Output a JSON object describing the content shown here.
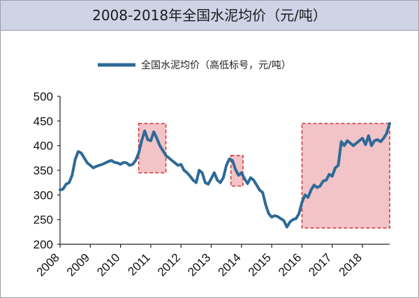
{
  "title": "2008-2018年全国水泥均价（元/吨）",
  "colors": {
    "line": "#2e6a97",
    "highlight_fill": "#f2c4c8",
    "highlight_border": "#d33a3a",
    "title_bar": "#cfd3e6"
  },
  "chart_data": {
    "type": "line",
    "title": "2008-2018年全国水泥均价（元/吨）",
    "xlabel": "",
    "ylabel": "",
    "xlim": [
      2008,
      2018.9
    ],
    "ylim": [
      200,
      500
    ],
    "y_ticks": [
      200,
      250,
      300,
      350,
      400,
      450,
      500
    ],
    "x_ticks": [
      "2008",
      "2009",
      "2010",
      "2011",
      "2012",
      "2013",
      "2014",
      "2015",
      "2016",
      "2017",
      "2018"
    ],
    "grid": false,
    "legend_position": "top-center",
    "series": [
      {
        "name": "全国水泥均价（高低标号，元/吨）",
        "x": [
          2008.0,
          2008.1,
          2008.2,
          2008.3,
          2008.4,
          2008.5,
          2008.6,
          2008.7,
          2008.8,
          2008.9,
          2009.0,
          2009.1,
          2009.2,
          2009.3,
          2009.4,
          2009.5,
          2009.6,
          2009.7,
          2009.8,
          2009.9,
          2010.0,
          2010.1,
          2010.2,
          2010.3,
          2010.4,
          2010.5,
          2010.6,
          2010.7,
          2010.8,
          2010.9,
          2011.0,
          2011.1,
          2011.2,
          2011.3,
          2011.4,
          2011.5,
          2011.6,
          2011.7,
          2011.8,
          2011.9,
          2012.0,
          2012.1,
          2012.2,
          2012.3,
          2012.4,
          2012.5,
          2012.6,
          2012.7,
          2012.8,
          2012.9,
          2013.0,
          2013.1,
          2013.2,
          2013.3,
          2013.4,
          2013.5,
          2013.6,
          2013.7,
          2013.8,
          2013.9,
          2014.0,
          2014.1,
          2014.2,
          2014.3,
          2014.4,
          2014.5,
          2014.6,
          2014.7,
          2014.8,
          2014.9,
          2015.0,
          2015.1,
          2015.2,
          2015.3,
          2015.4,
          2015.5,
          2015.6,
          2015.7,
          2015.8,
          2015.9,
          2016.0,
          2016.1,
          2016.2,
          2016.3,
          2016.4,
          2016.5,
          2016.6,
          2016.7,
          2016.8,
          2016.9,
          2017.0,
          2017.1,
          2017.2,
          2017.3,
          2017.4,
          2017.5,
          2017.6,
          2017.7,
          2017.8,
          2017.9,
          2018.0,
          2018.1,
          2018.2,
          2018.3,
          2018.4,
          2018.5,
          2018.6,
          2018.7,
          2018.8,
          2018.9
        ],
        "values": [
          310,
          312,
          322,
          325,
          340,
          372,
          388,
          385,
          375,
          365,
          360,
          355,
          358,
          360,
          362,
          365,
          368,
          370,
          366,
          365,
          362,
          366,
          365,
          360,
          362,
          370,
          385,
          410,
          430,
          412,
          410,
          428,
          415,
          400,
          390,
          380,
          375,
          370,
          365,
          360,
          362,
          350,
          345,
          338,
          330,
          325,
          350,
          345,
          325,
          322,
          333,
          345,
          330,
          325,
          335,
          360,
          373,
          370,
          352,
          340,
          345,
          333,
          323,
          335,
          330,
          320,
          310,
          305,
          280,
          262,
          255,
          258,
          256,
          252,
          248,
          235,
          245,
          250,
          252,
          262,
          285,
          300,
          295,
          310,
          320,
          315,
          318,
          328,
          330,
          342,
          338,
          355,
          360,
          408,
          400,
          410,
          405,
          400,
          405,
          410,
          415,
          402,
          420,
          400,
          410,
          412,
          408,
          415,
          425,
          445
        ]
      }
    ],
    "highlight_regions": [
      {
        "x": [
          2010.6,
          2011.5
        ],
        "y": [
          345,
          445
        ]
      },
      {
        "x": [
          2013.65,
          2014.05
        ],
        "y": [
          318,
          380
        ]
      },
      {
        "x": [
          2016.0,
          2018.9
        ],
        "y": [
          233,
          445
        ]
      }
    ]
  }
}
